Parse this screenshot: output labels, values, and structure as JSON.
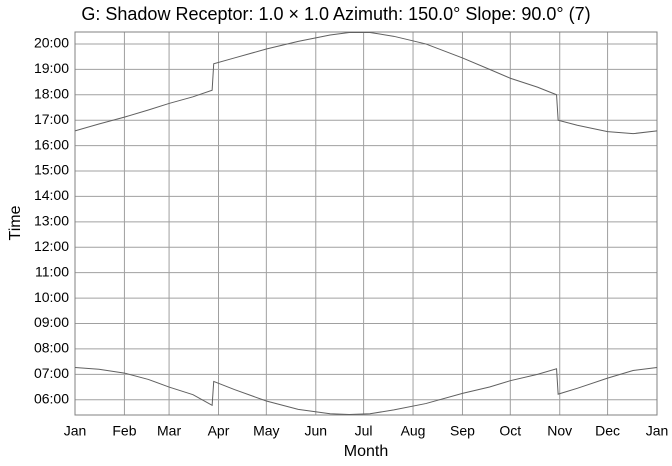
{
  "chart_data": {
    "type": "line",
    "title": "G: Shadow Receptor: 1.0 × 1.0  Azimuth: 150.0°  Slope: 90.0° (7)",
    "x_label": "Month",
    "y_label": "Time",
    "x": [
      0,
      15,
      31,
      46,
      59,
      74,
      86,
      87,
      100,
      120,
      140,
      160,
      172,
      185,
      200,
      220,
      243,
      260,
      273,
      290,
      302,
      303,
      315,
      334,
      350,
      365
    ],
    "series": [
      {
        "color": "#606060",
        "values": [
          16.58,
          16.85,
          17.12,
          17.4,
          17.66,
          17.92,
          18.18,
          19.22,
          19.45,
          19.8,
          20.1,
          20.35,
          20.45,
          20.45,
          20.3,
          20.0,
          19.45,
          19.0,
          18.65,
          18.3,
          18.0,
          17.0,
          16.8,
          16.55,
          16.47,
          16.58
        ]
      },
      {
        "color": "#606060",
        "values": [
          7.27,
          7.2,
          7.05,
          6.8,
          6.5,
          6.2,
          5.78,
          6.72,
          6.4,
          5.95,
          5.62,
          5.45,
          5.42,
          5.45,
          5.6,
          5.85,
          6.25,
          6.5,
          6.75,
          7.0,
          7.22,
          6.22,
          6.45,
          6.85,
          7.15,
          7.27
        ]
      }
    ],
    "xlim": [
      0,
      365
    ],
    "xticks": [
      {
        "value": 0,
        "label": "Jan"
      },
      {
        "value": 31,
        "label": "Feb"
      },
      {
        "value": 59,
        "label": "Mar"
      },
      {
        "value": 90,
        "label": "Apr"
      },
      {
        "value": 120,
        "label": "May"
      },
      {
        "value": 151,
        "label": "Jun"
      },
      {
        "value": 181,
        "label": "Jul"
      },
      {
        "value": 212,
        "label": "Aug"
      },
      {
        "value": 243,
        "label": "Sep"
      },
      {
        "value": 273,
        "label": "Oct"
      },
      {
        "value": 304,
        "label": "Nov"
      },
      {
        "value": 334,
        "label": "Dec"
      },
      {
        "value": 365,
        "label": "Jan"
      }
    ],
    "ylim": [
      5.4,
      20.47
    ],
    "yticks": [
      {
        "value": 6,
        "label": "06:00"
      },
      {
        "value": 7,
        "label": "07:00"
      },
      {
        "value": 8,
        "label": "08:00"
      },
      {
        "value": 9,
        "label": "09:00"
      },
      {
        "value": 10,
        "label": "10:00"
      },
      {
        "value": 11,
        "label": "11:00"
      },
      {
        "value": 12,
        "label": "12:00"
      },
      {
        "value": 13,
        "label": "13:00"
      },
      {
        "value": 14,
        "label": "14:00"
      },
      {
        "value": 15,
        "label": "15:00"
      },
      {
        "value": 16,
        "label": "16:00"
      },
      {
        "value": 17,
        "label": "17:00"
      },
      {
        "value": 18,
        "label": "18:00"
      },
      {
        "value": 19,
        "label": "19:00"
      },
      {
        "value": 20,
        "label": "20:00"
      }
    ],
    "grid": true
  }
}
